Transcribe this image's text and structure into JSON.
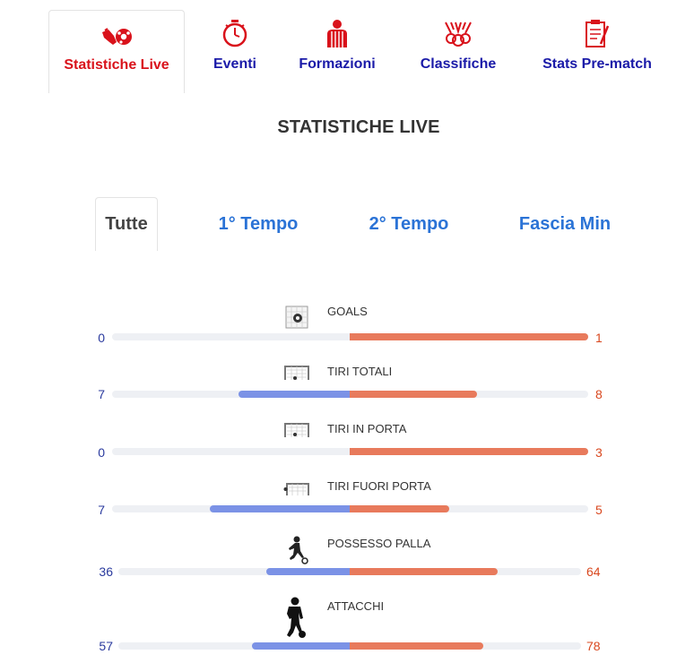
{
  "tabs": [
    {
      "label": "Statistiche Live",
      "icon": "boot-ball-icon",
      "active": true
    },
    {
      "label": "Eventi",
      "icon": "stopwatch-icon",
      "active": false
    },
    {
      "label": "Formazioni",
      "icon": "referee-icon",
      "active": false
    },
    {
      "label": "Classifiche",
      "icon": "medals-icon",
      "active": false
    },
    {
      "label": "Stats Pre-match",
      "icon": "clipboard-icon",
      "active": false
    }
  ],
  "section_title": "STATISTICHE LIVE",
  "sub_tabs": [
    {
      "label": "Tutte",
      "active": true
    },
    {
      "label": "1° Tempo",
      "active": false
    },
    {
      "label": "2° Tempo",
      "active": false
    },
    {
      "label": "Fascia Min",
      "active": false
    }
  ],
  "colors": {
    "home": "#7b92e6",
    "away": "#e87a5c",
    "tab_active": "#d9121b",
    "tab": "#1a1aa8",
    "subtab": "#2b73d6"
  },
  "stats": [
    {
      "label": "GOALS",
      "icon": "goal-net-icon",
      "home": "0",
      "away": "1",
      "home_share": 0.0,
      "away_share": 1.0
    },
    {
      "label": "TIRI TOTALI",
      "icon": "goal-shot-icon",
      "home": "7",
      "away": "8",
      "home_share": 0.467,
      "away_share": 0.533
    },
    {
      "label": "TIRI IN PORTA",
      "icon": "goal-shot-icon",
      "home": "0",
      "away": "3",
      "home_share": 0.0,
      "away_share": 1.0
    },
    {
      "label": "TIRI FUORI PORTA",
      "icon": "shot-wide-icon",
      "home": "7",
      "away": "5",
      "home_share": 0.583,
      "away_share": 0.417
    },
    {
      "label": "POSSESSO PALLA",
      "icon": "player-dribble-icon",
      "home": "36",
      "away": "64",
      "home_share": 0.36,
      "away_share": 0.64
    },
    {
      "label": "ATTACCHI",
      "icon": "player-attack-icon",
      "home": "57",
      "away": "78",
      "home_share": 0.422,
      "away_share": 0.578
    }
  ]
}
